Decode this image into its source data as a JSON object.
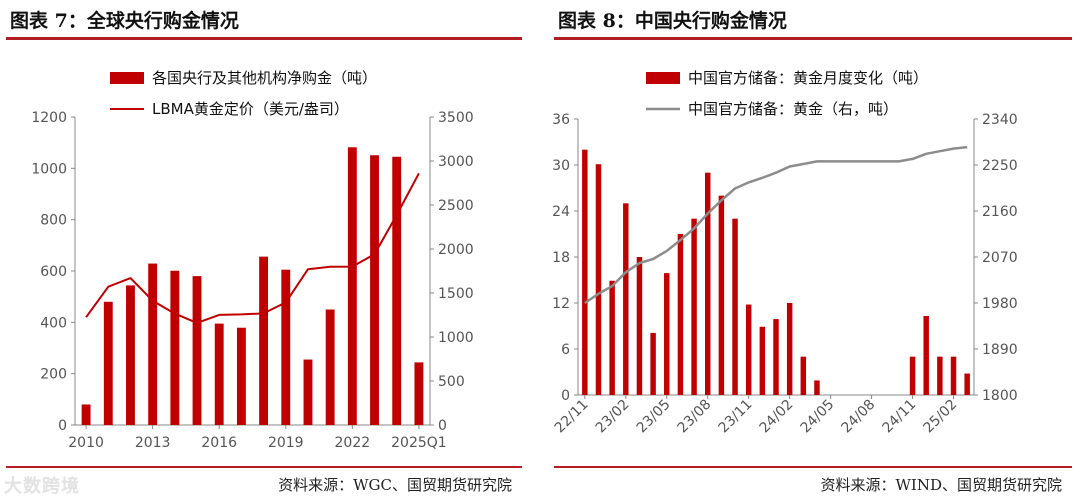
{
  "left": {
    "title": "图表 7：全球央行购金情况",
    "source": "资料来源：WGC、国贸期货研究院"
  },
  "right": {
    "title": "图表 8：中国央行购金情况",
    "source": "资料来源：WIND、国贸期货研究院"
  },
  "watermark": "大数跨境",
  "colors": {
    "bar": "#c00000",
    "line_left": "#c00000",
    "line_right": "#8c8c8c",
    "rule": "#b11d22"
  },
  "chart_data": [
    {
      "type": "bar",
      "categories": [
        "2010",
        "2011",
        "2012",
        "2013",
        "2014",
        "2015",
        "2016",
        "2017",
        "2018",
        "2019",
        "2020",
        "2021",
        "2022",
        "2023",
        "2024",
        "2025Q1"
      ],
      "x_tick_labels": [
        "2010",
        "2013",
        "2016",
        "2019",
        "2022",
        "2025Q1"
      ],
      "x_tick_indices": [
        0,
        3,
        6,
        9,
        12,
        15
      ],
      "series": [
        {
          "name": "各国央行及其他机构净购金（吨）",
          "type": "bar",
          "axis": "left",
          "values": [
            80,
            480,
            544,
            629,
            601,
            580,
            395,
            379,
            656,
            605,
            255,
            450,
            1082,
            1051,
            1045,
            244
          ]
        },
        {
          "name": "LBMA黄金定价（美元/盎司）",
          "type": "line",
          "axis": "right",
          "values": [
            1225,
            1572,
            1669,
            1411,
            1266,
            1160,
            1251,
            1257,
            1268,
            1393,
            1770,
            1799,
            1800,
            1941,
            2386,
            2860
          ]
        }
      ],
      "y_left": {
        "min": 0,
        "max": 1200,
        "ticks": [
          0,
          200,
          400,
          600,
          800,
          1000,
          1200
        ]
      },
      "y_right": {
        "min": 0,
        "max": 3500,
        "ticks": [
          0,
          500,
          1000,
          1500,
          2000,
          2500,
          3000,
          3500
        ]
      },
      "legend_placement": "top-center",
      "grid": false
    },
    {
      "type": "bar",
      "categories": [
        "22/11",
        "22/12",
        "23/01",
        "23/02",
        "23/03",
        "23/04",
        "23/05",
        "23/06",
        "23/07",
        "23/08",
        "23/09",
        "23/10",
        "23/11",
        "23/12",
        "24/01",
        "24/02",
        "24/03",
        "24/04",
        "24/05",
        "24/06",
        "24/07",
        "24/08",
        "24/09",
        "24/10",
        "24/11",
        "24/12",
        "25/01",
        "25/02",
        "25/03"
      ],
      "x_tick_labels": [
        "22/11",
        "23/02",
        "23/05",
        "23/08",
        "23/11",
        "24/02",
        "24/05",
        "24/08",
        "24/11",
        "25/02"
      ],
      "x_tick_indices": [
        0,
        3,
        6,
        9,
        12,
        15,
        18,
        21,
        24,
        27
      ],
      "series": [
        {
          "name": "中国官方储备：黄金月度变化（吨）",
          "type": "bar",
          "axis": "left",
          "values": [
            32,
            30.1,
            14.9,
            25,
            18,
            8.1,
            15.9,
            21,
            23,
            29,
            26,
            23,
            11.8,
            8.9,
            9.9,
            12,
            5,
            1.9,
            0,
            0,
            0,
            0,
            0,
            0,
            5,
            10.3,
            5,
            5,
            2.8
          ]
        },
        {
          "name": "中国官方储备：黄金（右，吨）",
          "type": "line",
          "axis": "right",
          "values": [
            1980,
            1998,
            2013,
            2040,
            2058,
            2066,
            2082,
            2103,
            2126,
            2155,
            2181,
            2204,
            2216,
            2225,
            2235,
            2247,
            2252,
            2257,
            2257,
            2257,
            2257,
            2257,
            2257,
            2257,
            2262,
            2272,
            2277,
            2282,
            2285
          ]
        }
      ],
      "y_left": {
        "min": 0,
        "max": 36,
        "ticks": [
          0,
          6,
          12,
          18,
          24,
          30,
          36
        ]
      },
      "y_right": {
        "min": 1800,
        "max": 2340,
        "ticks": [
          1800,
          1890,
          1980,
          2070,
          2160,
          2250,
          2340
        ]
      },
      "legend_placement": "top-center",
      "grid": false
    }
  ]
}
